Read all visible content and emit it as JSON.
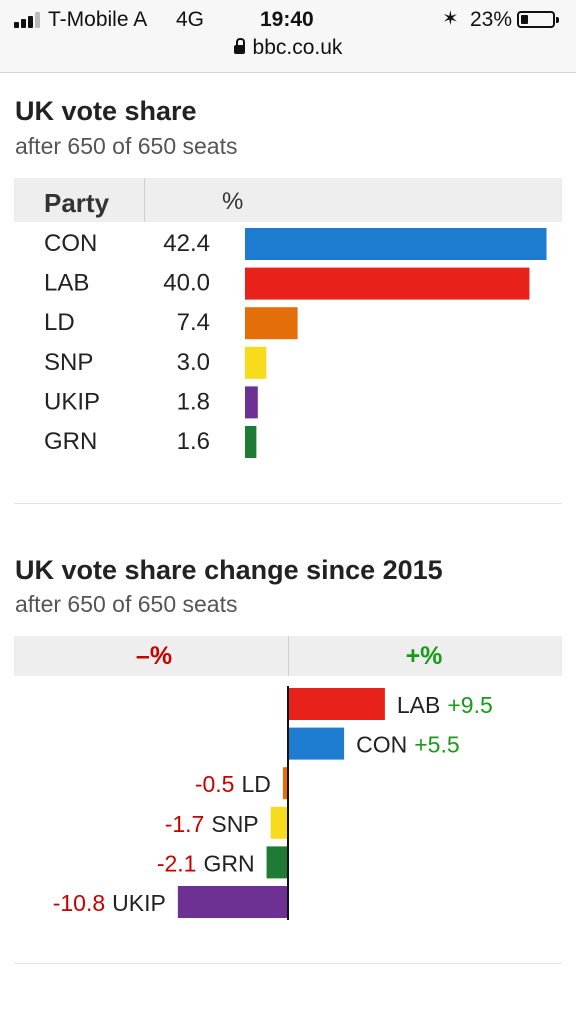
{
  "status_bar": {
    "carrier": "T-Mobile A",
    "network": "4G",
    "time": "19:40",
    "battery_percent": "23%",
    "battery_level": 0.23,
    "url": "bbc.co.uk"
  },
  "section1": {
    "title": "UK vote share",
    "subtitle": "after 650 of 650 seats",
    "col_party": "Party",
    "col_pct": "%"
  },
  "section2": {
    "title": "UK vote share change since 2015",
    "subtitle": "after 650 of 650 seats",
    "col_neg": "–%",
    "col_pos": "+%"
  },
  "chart_data": [
    {
      "type": "bar",
      "title": "UK vote share",
      "categories": [
        "CON",
        "LAB",
        "LD",
        "SNP",
        "UKIP",
        "GRN"
      ],
      "values": [
        42.4,
        40.0,
        7.4,
        3.0,
        1.8,
        1.6
      ],
      "labels": [
        "42.4",
        "40.0",
        "7.4",
        "3.0",
        "1.8",
        "1.6"
      ],
      "colors": [
        "#1d7bd0",
        "#e8211b",
        "#e46f0a",
        "#f7dc1b",
        "#6c3192",
        "#1e7a35"
      ],
      "xlim": [
        0,
        45
      ]
    },
    {
      "type": "bar",
      "title": "UK vote share change since 2015",
      "categories": [
        "LAB",
        "CON",
        "LD",
        "SNP",
        "GRN",
        "UKIP"
      ],
      "values": [
        9.5,
        5.5,
        -0.5,
        -1.7,
        -2.1,
        -10.8
      ],
      "labels": [
        "+9.5",
        "+5.5",
        "-0.5",
        "-1.7",
        "-2.1",
        "-10.8"
      ],
      "colors": [
        "#e8211b",
        "#1d7bd0",
        "#e46f0a",
        "#f7dc1b",
        "#1e7a35",
        "#6c3192"
      ],
      "label_colors": {
        "positive": "#1a9a1a",
        "negative": "#c80000"
      },
      "xlim": [
        -11,
        11
      ]
    }
  ]
}
